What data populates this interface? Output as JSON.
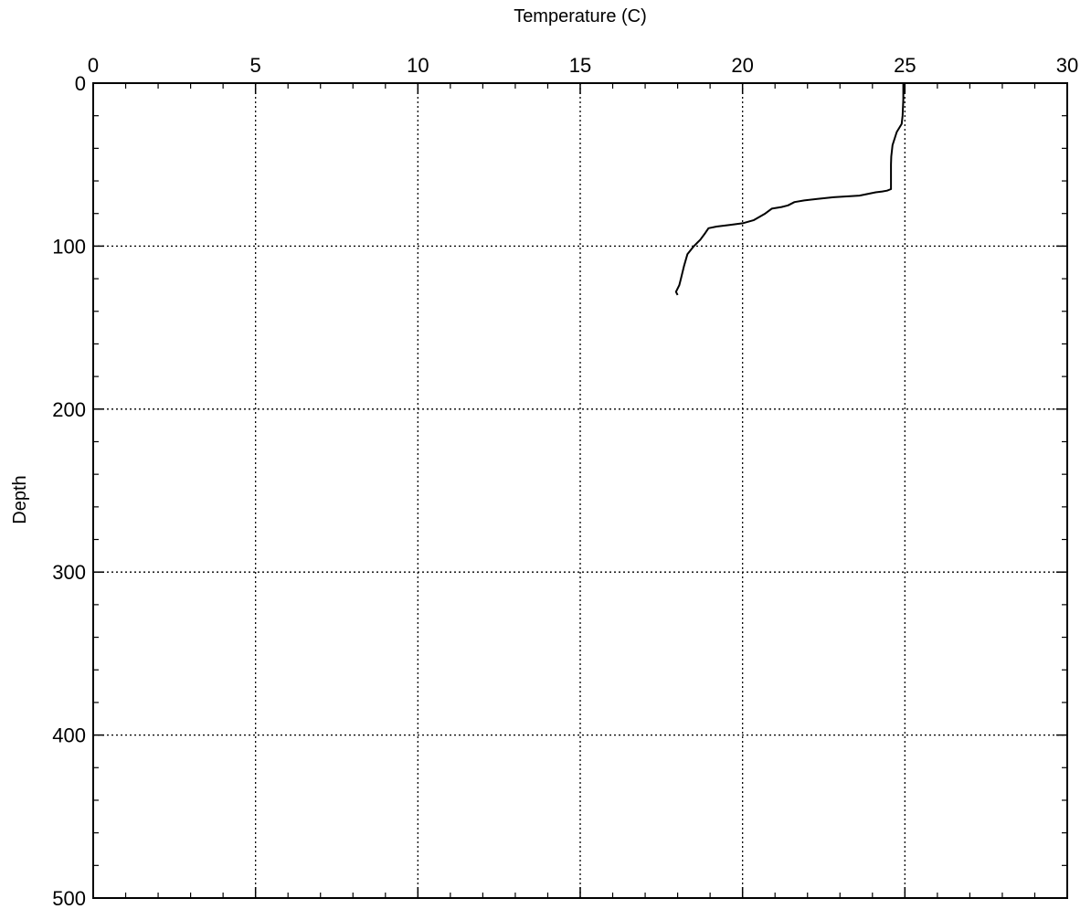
{
  "chart_data": {
    "type": "line",
    "title": "",
    "xlabel": "Temperature (C)",
    "ylabel": "Depth",
    "x_axis_position": "top",
    "y_inverted": true,
    "xlim": [
      0,
      30
    ],
    "ylim": [
      0,
      500
    ],
    "xticks": [
      0,
      5,
      10,
      15,
      20,
      25,
      30
    ],
    "yticks": [
      0,
      100,
      200,
      300,
      400,
      500
    ],
    "xtick_labels": [
      "0",
      "5",
      "10",
      "15",
      "20",
      "25",
      "30"
    ],
    "ytick_labels": [
      "0",
      "100",
      "200",
      "300",
      "400",
      "500"
    ],
    "grid": true,
    "grid_style": "dotted",
    "line_color": "#000000",
    "series": [
      {
        "x": [
          24.95,
          24.95,
          24.93,
          24.9,
          24.75,
          24.62,
          24.58,
          24.57,
          24.57,
          24.57,
          24.45,
          24.3,
          24.1,
          23.6,
          23.2,
          22.8,
          22.3,
          21.9,
          21.6,
          21.4,
          21.2,
          20.9,
          20.7,
          20.35,
          20.0,
          19.6,
          19.2,
          18.95,
          18.85,
          18.7,
          18.5,
          18.3,
          18.2,
          18.1,
          18.05,
          17.95,
          18.0
        ],
        "y": [
          0,
          10,
          20,
          25,
          30,
          38,
          45,
          50,
          60,
          65,
          66,
          66.5,
          67,
          69,
          69.5,
          70,
          71,
          72,
          73,
          75,
          76,
          77,
          80,
          84,
          86,
          87,
          88,
          89,
          92,
          96,
          100,
          105,
          112,
          120,
          124,
          128,
          130
        ]
      }
    ]
  }
}
